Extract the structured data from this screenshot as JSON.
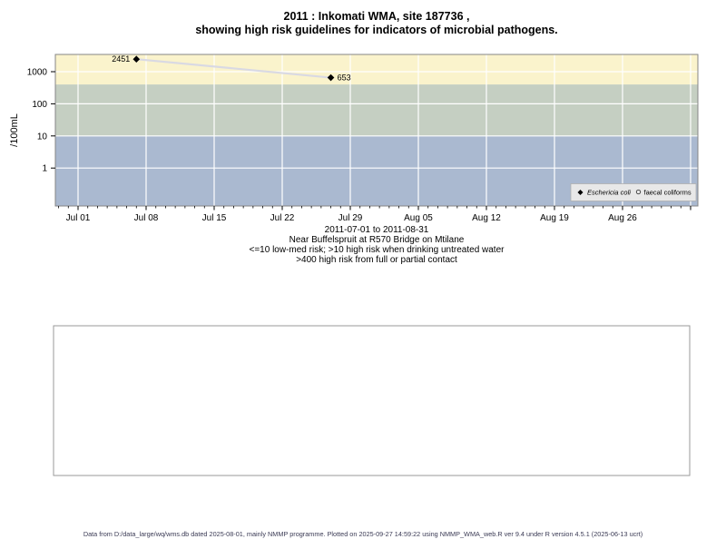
{
  "figure": {
    "title_line1": "2011 : Inkomati WMA, site 187736 ,",
    "title_line2": "showing high risk guidelines for indicators of microbial pathogens.",
    "footer": "Data from D:/data_large/wq/wms.db dated 2025-08-01, mainly NMMP programme. Plotted on 2025-09-27 14:59:22 using NMMP_WMA_web.R ver 9.4 under R version 4.5.1 (2025-06-13 ucrt)"
  },
  "caption": {
    "line1": "2011-07-01 to 2011-08-31",
    "line2": "Near Buffelspruit at R570 Bridge on Mtilane",
    "line3": "<=10 low-med risk; >10 high risk when drinking untreated water",
    "line4": ">400 high risk from full or partial contact"
  },
  "legend": {
    "item1": "Eschericia coli",
    "item2": "faecal coliforms"
  },
  "chart_data": {
    "type": "scatter",
    "title": "2011 : Inkomati WMA, site 187736 , showing high risk guidelines for indicators of microbial pathogens.",
    "xlabel": "",
    "ylabel": "/100mL",
    "y_scale": "log",
    "y_ticks": [
      1000,
      100,
      10,
      1
    ],
    "y_range_approx": [
      0.07,
      3500
    ],
    "x_range": [
      "2011-07-01",
      "2011-08-31"
    ],
    "grid": true,
    "legend_position": "bottom-right",
    "x_ticks": [
      {
        "label": "Jul 01",
        "date": "2011-07-01"
      },
      {
        "label": "Jul 08",
        "date": "2011-07-08"
      },
      {
        "label": "Jul 15",
        "date": "2011-07-15"
      },
      {
        "label": "Jul 22",
        "date": "2011-07-22"
      },
      {
        "label": "Jul 29",
        "date": "2011-07-29"
      },
      {
        "label": "Aug 05",
        "date": "2011-08-05"
      },
      {
        "label": "Aug 12",
        "date": "2011-08-12"
      },
      {
        "label": "Aug 19",
        "date": "2011-08-19"
      },
      {
        "label": "Aug 26",
        "date": "2011-08-26"
      },
      {
        "label": "",
        "date": "2011-09-02"
      }
    ],
    "bands": [
      {
        "name": "high-risk-full-or-partial-contact",
        "from": 400,
        "to": "top",
        "color": "#faf3cc"
      },
      {
        "name": "high-risk-drinking-untreated-water",
        "from": 10,
        "to": 400,
        "color": "#c5cfc2"
      },
      {
        "name": "low-med-risk",
        "from": "bottom",
        "to": 10,
        "color": "#aab9d0"
      }
    ],
    "series": [
      {
        "name": "Eschericia coli",
        "marker": "filled-diamond",
        "points": [
          {
            "date": "2011-07-07",
            "value": 2451,
            "label_side": "left"
          },
          {
            "date": "2011-07-27",
            "value": 653,
            "label_side": "right"
          }
        ]
      },
      {
        "name": "faecal coliforms",
        "marker": "open-circle",
        "points": []
      }
    ],
    "colors": {
      "band_high_contact": "#faf3cc",
      "band_high_drinking": "#c5cfc2",
      "band_low_med": "#aab9d0",
      "series_line": "#d9d9e3",
      "marker": "#000000",
      "gridline": "#ffffff",
      "plot_border": "#858585",
      "legend_bg": "#e8e8e8"
    }
  }
}
